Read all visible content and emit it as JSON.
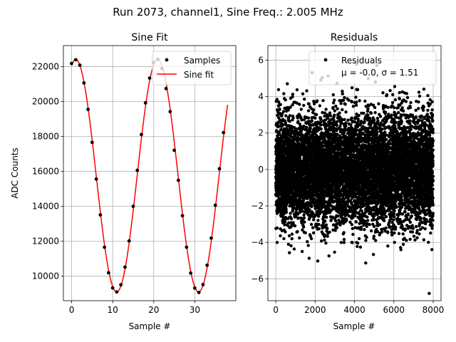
{
  "figure": {
    "title": "Run 2073, channel1, Sine Freq.: 2.005 MHz"
  },
  "chart_data": [
    {
      "type": "line",
      "title": "Sine Fit",
      "xlabel": "Sample #",
      "ylabel": "ADC Counts",
      "xlim": [
        -2,
        40
      ],
      "ylim": [
        8600,
        23200
      ],
      "xticks": [
        0,
        10,
        20,
        30
      ],
      "yticks": [
        10000,
        12000,
        14000,
        16000,
        18000,
        20000,
        22000
      ],
      "grid": true,
      "legend": {
        "position": "top-right",
        "entries": [
          "Samples",
          "Sine fit"
        ]
      },
      "series": [
        {
          "name": "Samples",
          "style": "scatter",
          "color": "#000000",
          "x": [
            0,
            1,
            2,
            3,
            4,
            5,
            6,
            7,
            8,
            9,
            10,
            11,
            12,
            13,
            14,
            15,
            16,
            17,
            18,
            19,
            20,
            21,
            22,
            23,
            24,
            25,
            26,
            27,
            28,
            29,
            30,
            31,
            32,
            33,
            34,
            35,
            36,
            37
          ],
          "y": [
            22180,
            22390,
            22080,
            21060,
            19550,
            17660,
            15560,
            13510,
            11660,
            10200,
            9330,
            9100,
            9510,
            10520,
            12020,
            14000,
            16060,
            18110,
            19920,
            21340,
            22230,
            22420,
            21890,
            20740,
            19420,
            17210,
            15490,
            13460,
            11660,
            10180,
            9320,
            9070,
            9520,
            10630,
            12180,
            14060,
            16150,
            18220
          ]
        },
        {
          "name": "Sine fit",
          "style": "line",
          "color": "#ff0000",
          "model": {
            "offset": 15750,
            "amplitude": 6650,
            "period": 19.95,
            "peak_sample": 1.0
          },
          "x_range": [
            0,
            38
          ]
        }
      ]
    },
    {
      "type": "scatter",
      "title": "Residuals",
      "xlabel": "Sample #",
      "xlim": [
        -400,
        8400
      ],
      "ylim": [
        -7.2,
        6.8
      ],
      "xticks": [
        0,
        2000,
        4000,
        6000,
        8000
      ],
      "yticks": [
        -6,
        -4,
        -2,
        0,
        2,
        4,
        6
      ],
      "grid": true,
      "legend": {
        "position": "top-right",
        "entries": [
          "Residuals",
          "μ = -0.0, σ = 1.51"
        ]
      },
      "series": [
        {
          "name": "Residuals",
          "color": "#000000",
          "n_points": 8000,
          "x_range": [
            0,
            8000
          ],
          "mean": -0.0,
          "std": 1.51
        }
      ]
    }
  ]
}
